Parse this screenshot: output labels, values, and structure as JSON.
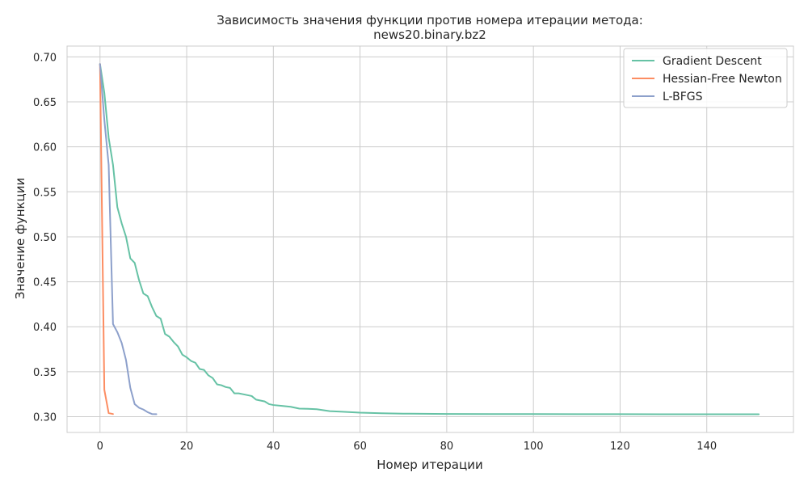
{
  "chart_data": {
    "type": "line",
    "title": "Зависимость значения функции против номера итерации метода:",
    "subtitle": "news20.binary.bz2",
    "xlabel": "Номер итерации",
    "ylabel": "Значение функции",
    "xlim": [
      -7.6,
      160
    ],
    "ylim": [
      0.2825,
      0.712
    ],
    "xticks": [
      0,
      20,
      40,
      60,
      80,
      100,
      120,
      140
    ],
    "xtick_labels": [
      "0",
      "20",
      "40",
      "60",
      "80",
      "100",
      "120",
      "140"
    ],
    "yticks": [
      0.3,
      0.35,
      0.4,
      0.45,
      0.5,
      0.55,
      0.6,
      0.65,
      0.7
    ],
    "ytick_labels": [
      "0.30",
      "0.35",
      "0.40",
      "0.45",
      "0.50",
      "0.55",
      "0.60",
      "0.65",
      "0.70"
    ],
    "grid": true,
    "legend_position": "top-right",
    "series": [
      {
        "name": "Gradient Descent",
        "color": "#66c2a5",
        "x": [
          0,
          1,
          2,
          3,
          4,
          5,
          6,
          7,
          8,
          9,
          10,
          11,
          12,
          13,
          14,
          15,
          16,
          17,
          18,
          19,
          20,
          21,
          22,
          23,
          24,
          25,
          26,
          27,
          28,
          29,
          30,
          31,
          32,
          33,
          34,
          35,
          36,
          37,
          38,
          39,
          40,
          42,
          44,
          46,
          48,
          50,
          53,
          56,
          60,
          65,
          70,
          80,
          90,
          100,
          110,
          120,
          130,
          140,
          152
        ],
        "y": [
          0.692,
          0.66,
          0.61,
          0.58,
          0.533,
          0.515,
          0.5,
          0.476,
          0.471,
          0.452,
          0.437,
          0.434,
          0.422,
          0.412,
          0.409,
          0.392,
          0.389,
          0.383,
          0.378,
          0.369,
          0.366,
          0.362,
          0.36,
          0.353,
          0.352,
          0.346,
          0.343,
          0.336,
          0.335,
          0.333,
          0.332,
          0.326,
          0.326,
          0.325,
          0.324,
          0.323,
          0.319,
          0.318,
          0.317,
          0.314,
          0.313,
          0.312,
          0.311,
          0.309,
          0.3088,
          0.3083,
          0.3062,
          0.3055,
          0.3045,
          0.3038,
          0.3034,
          0.3031,
          0.303,
          0.3029,
          0.3028,
          0.3028,
          0.3027,
          0.3027,
          0.3027
        ]
      },
      {
        "name": "Hessian-Free Newton",
        "color": "#fc8d62",
        "x": [
          0,
          1,
          2,
          3
        ],
        "y": [
          0.692,
          0.33,
          0.304,
          0.303
        ]
      },
      {
        "name": "L-BFGS",
        "color": "#8da0cb",
        "x": [
          0,
          1,
          2,
          3,
          4,
          5,
          6,
          7,
          8,
          9,
          10,
          11,
          12,
          13
        ],
        "y": [
          0.692,
          0.63,
          0.58,
          0.403,
          0.394,
          0.382,
          0.363,
          0.332,
          0.314,
          0.31,
          0.308,
          0.305,
          0.303,
          0.3028
        ]
      }
    ]
  }
}
